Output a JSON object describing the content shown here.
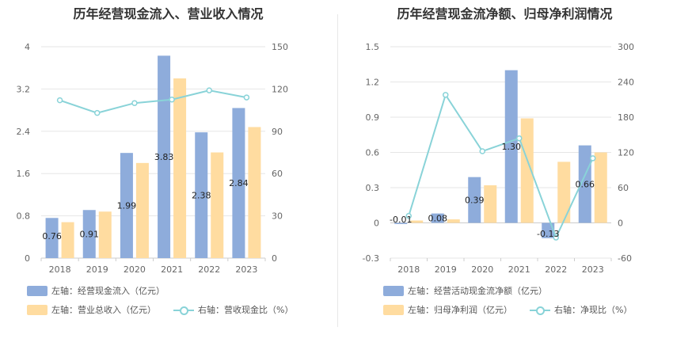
{
  "chart_data": [
    {
      "type": "bar",
      "title": "历年经营现金流入、营业收入情况",
      "categories": [
        "2018",
        "2019",
        "2020",
        "2021",
        "2022",
        "2023"
      ],
      "series": [
        {
          "name": "左轴：经营现金流入（亿元）",
          "kind": "bar",
          "axis": "left",
          "color": "#8eacdb",
          "values": [
            0.76,
            0.91,
            1.99,
            3.83,
            2.38,
            2.84
          ],
          "labels": [
            "0.76",
            "0.91",
            "1.99",
            "3.83",
            "2.38",
            "2.84"
          ]
        },
        {
          "name": "左轴：营业总收入（亿元）",
          "kind": "bar",
          "axis": "left",
          "color": "#ffdca0",
          "values": [
            0.68,
            0.88,
            1.8,
            3.4,
            2.0,
            2.48
          ]
        },
        {
          "name": "右轴：营收现金比（%）",
          "kind": "line",
          "axis": "right",
          "color": "#89d3d8",
          "values": [
            112,
            103,
            110,
            112.5,
            119,
            114
          ]
        }
      ],
      "y_left": {
        "min": 0,
        "max": 4,
        "ticks": [
          "0",
          "0.8",
          "1.6",
          "2.4",
          "3.2",
          "4"
        ]
      },
      "y_right": {
        "min": 0,
        "max": 150,
        "ticks": [
          "0",
          "30",
          "60",
          "90",
          "120",
          "150"
        ]
      },
      "grid": true,
      "legend_position": "bottom"
    },
    {
      "type": "bar",
      "title": "历年经营现金流净额、归母净利润情况",
      "categories": [
        "2018",
        "2019",
        "2020",
        "2021",
        "2022",
        "2023"
      ],
      "series": [
        {
          "name": "左轴：经营活动现金流净额（亿元）",
          "kind": "bar",
          "axis": "left",
          "color": "#8eacdb",
          "values": [
            -0.01,
            0.08,
            0.39,
            1.3,
            -0.13,
            0.66
          ],
          "labels": [
            "-0.01",
            "0.08",
            "0.39",
            "1.30",
            "-0.13",
            "0.66"
          ]
        },
        {
          "name": "左轴：归母净利润（亿元）",
          "kind": "bar",
          "axis": "left",
          "color": "#ffdca0",
          "values": [
            0.02,
            0.03,
            0.32,
            0.89,
            0.52,
            0.6
          ]
        },
        {
          "name": "右轴：净现比（%）",
          "kind": "line",
          "axis": "right",
          "color": "#89d3d8",
          "values": [
            12,
            218,
            122,
            144,
            -25,
            110
          ]
        }
      ],
      "y_left": {
        "min": -0.3,
        "max": 1.5,
        "ticks": [
          "-0.3",
          "0",
          "0.3",
          "0.6",
          "0.9",
          "1.2",
          "1.5"
        ]
      },
      "y_right": {
        "min": -60,
        "max": 300,
        "ticks": [
          "-60",
          "0",
          "60",
          "120",
          "180",
          "240",
          "300"
        ]
      },
      "grid": true,
      "legend_position": "bottom"
    }
  ]
}
